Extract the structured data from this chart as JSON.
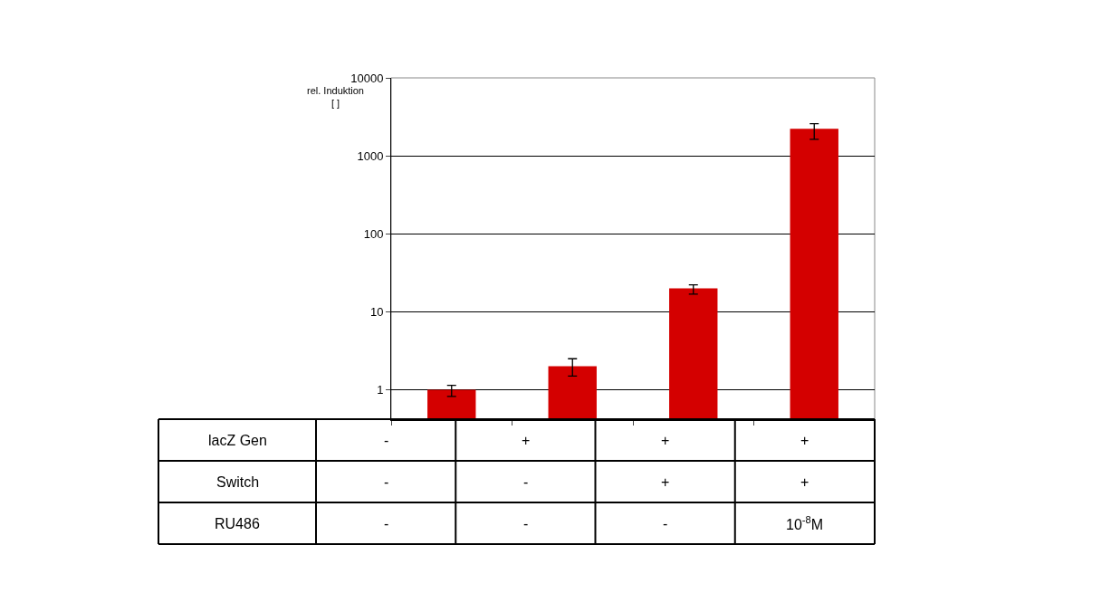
{
  "chart_data": {
    "type": "bar",
    "ylabel": "rel. Induktion\n[ ]",
    "categories": [
      null,
      null,
      null,
      null
    ],
    "series": [
      {
        "color": "#d40000",
        "values": [
          1,
          2,
          20,
          2220
        ],
        "errors": [
          [
            0.82,
            1.14
          ],
          [
            1.5,
            2.5
          ],
          [
            16.9,
            22.2
          ],
          [
            1630,
            2580
          ]
        ]
      }
    ],
    "log": "y",
    "ylim": [
      0.42,
      10000
    ],
    "yticks": [
      1,
      10,
      100,
      1000,
      10000
    ],
    "grid": "y",
    "tick_labels": "y",
    "annotations": [
      "lacZ Gen",
      "-",
      "+",
      "+",
      "+",
      "Switch",
      "-",
      "-",
      "+",
      "+",
      "RU486",
      "-",
      "-",
      "-",
      "10$^{-8}$M"
    ]
  }
}
